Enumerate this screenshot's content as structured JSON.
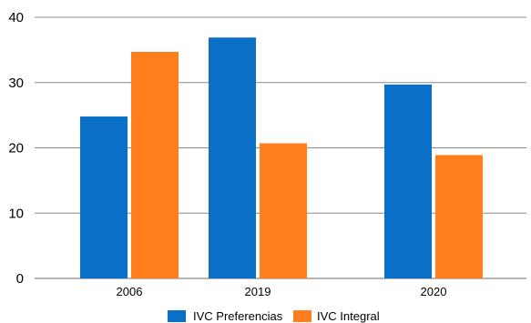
{
  "chart_data": {
    "type": "bar",
    "categories": [
      "2006",
      "2019",
      "2020"
    ],
    "series": [
      {
        "name": "IVC Preferencias",
        "values": [
          24.8,
          36.9,
          29.7
        ],
        "color": "#0a6fc6"
      },
      {
        "name": "IVC Integral",
        "values": [
          34.7,
          20.7,
          18.9
        ],
        "color": "#ff7f1f"
      }
    ],
    "ylim": [
      0,
      40
    ],
    "yticks": [
      "0",
      "10",
      "20",
      "30",
      "40"
    ],
    "grid": true,
    "legend": "bottom"
  }
}
